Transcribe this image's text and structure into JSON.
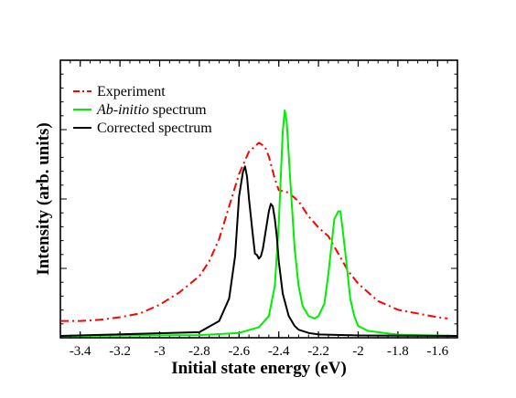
{
  "chart_data": {
    "type": "line",
    "xlabel": "Initial state energy (eV)",
    "ylabel": "Intensity (arb. units)",
    "xlim": [
      -3.5,
      -1.5
    ],
    "ylim": [
      0,
      1
    ],
    "x_ticks": [
      "-3.4",
      "-3.2",
      "-3",
      "-2.8",
      "-2.6",
      "-2.4",
      "-2.2",
      "-2",
      "-1.8",
      "-1.6"
    ],
    "y_ticks_labeled": false,
    "grid": false,
    "legend_position": "top-left",
    "legend": [
      {
        "prefix": "",
        "italic": "",
        "suffix": "Experiment",
        "color": "#ff0000",
        "dash": "dashdot"
      },
      {
        "prefix": "",
        "italic": "Ab-initio",
        "suffix": " spectrum",
        "color": "#00ee00",
        "dash": "solid"
      },
      {
        "prefix": "",
        "italic": "",
        "suffix": "Corrected spectrum",
        "color": "#000000",
        "dash": "solid"
      }
    ],
    "series": [
      {
        "color": "#ff0000",
        "dash": "dashdot",
        "x": [
          -3.5,
          -3.4,
          -3.3,
          -3.2,
          -3.1,
          -3.0,
          -2.9,
          -2.8,
          -2.75,
          -2.7,
          -2.65,
          -2.6,
          -2.55,
          -2.5,
          -2.47,
          -2.45,
          -2.42,
          -2.4,
          -2.35,
          -2.3,
          -2.25,
          -2.2,
          -2.15,
          -2.1,
          -2.05,
          -2.0,
          -1.9,
          -1.8,
          -1.7,
          -1.6,
          -1.55
        ],
        "y": [
          0.06,
          0.06,
          0.065,
          0.075,
          0.09,
          0.125,
          0.175,
          0.24,
          0.3,
          0.39,
          0.52,
          0.65,
          0.74,
          0.775,
          0.76,
          0.72,
          0.63,
          0.585,
          0.575,
          0.54,
          0.48,
          0.435,
          0.4,
          0.33,
          0.26,
          0.21,
          0.14,
          0.105,
          0.09,
          0.075,
          0.07
        ]
      },
      {
        "color": "#00ee00",
        "dash": "solid",
        "x": [
          -3.5,
          -2.8,
          -2.6,
          -2.5,
          -2.45,
          -2.42,
          -2.4,
          -2.38,
          -2.37,
          -2.36,
          -2.34,
          -2.32,
          -2.3,
          -2.28,
          -2.25,
          -2.22,
          -2.2,
          -2.17,
          -2.15,
          -2.12,
          -2.1,
          -2.09,
          -2.08,
          -2.06,
          -2.04,
          -2.02,
          -2.0,
          -1.95,
          -1.8,
          -1.5
        ],
        "y": [
          0.0,
          0.003,
          0.012,
          0.035,
          0.08,
          0.2,
          0.45,
          0.82,
          0.905,
          0.86,
          0.6,
          0.35,
          0.2,
          0.12,
          0.08,
          0.07,
          0.08,
          0.13,
          0.25,
          0.47,
          0.5,
          0.5,
          0.44,
          0.3,
          0.15,
          0.08,
          0.04,
          0.02,
          0.005,
          0.0
        ]
      },
      {
        "color": "#000000",
        "dash": "solid",
        "x": [
          -3.5,
          -2.8,
          -2.7,
          -2.65,
          -2.62,
          -2.6,
          -2.58,
          -2.57,
          -2.56,
          -2.55,
          -2.53,
          -2.52,
          -2.51,
          -2.5,
          -2.49,
          -2.48,
          -2.46,
          -2.45,
          -2.44,
          -2.43,
          -2.42,
          -2.41,
          -2.4,
          -2.38,
          -2.35,
          -2.32,
          -2.3,
          -2.25,
          -2.2,
          -2.0,
          -1.5
        ],
        "y": [
          0.0,
          0.015,
          0.06,
          0.15,
          0.32,
          0.56,
          0.66,
          0.68,
          0.64,
          0.55,
          0.4,
          0.33,
          0.325,
          0.31,
          0.32,
          0.35,
          0.45,
          0.5,
          0.53,
          0.52,
          0.47,
          0.4,
          0.3,
          0.17,
          0.08,
          0.04,
          0.025,
          0.012,
          0.006,
          0.002,
          0.0
        ]
      }
    ]
  }
}
